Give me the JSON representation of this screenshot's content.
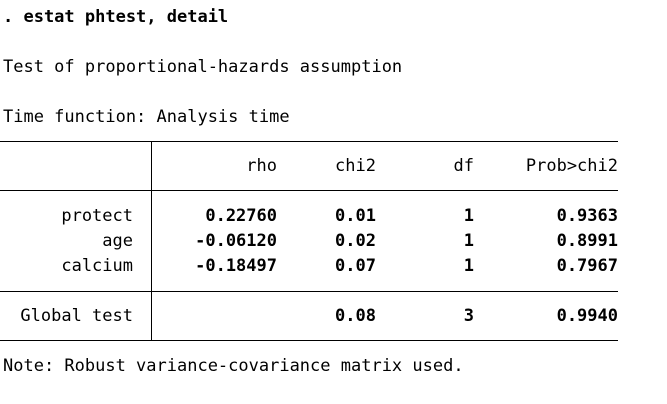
{
  "command": ". estat phtest, detail",
  "title": "Test of proportional-hazards assumption",
  "time_function": "Time function: Analysis time",
  "table": {
    "headers": [
      "",
      "rho",
      "chi2",
      "df",
      "Prob>chi2"
    ],
    "rows": [
      {
        "label": "protect",
        "rho": "0.22760",
        "chi2": "0.01",
        "df": "1",
        "prob": "0.9363"
      },
      {
        "label": "age",
        "rho": "-0.06120",
        "chi2": "0.02",
        "df": "1",
        "prob": "0.8991"
      },
      {
        "label": "calcium",
        "rho": "-0.18497",
        "chi2": "0.07",
        "df": "1",
        "prob": "0.7967"
      }
    ],
    "global": {
      "label": "Global test",
      "rho": "",
      "chi2": "0.08",
      "df": "3",
      "prob": "0.9940"
    }
  },
  "note": "Note: Robust variance-covariance matrix used."
}
